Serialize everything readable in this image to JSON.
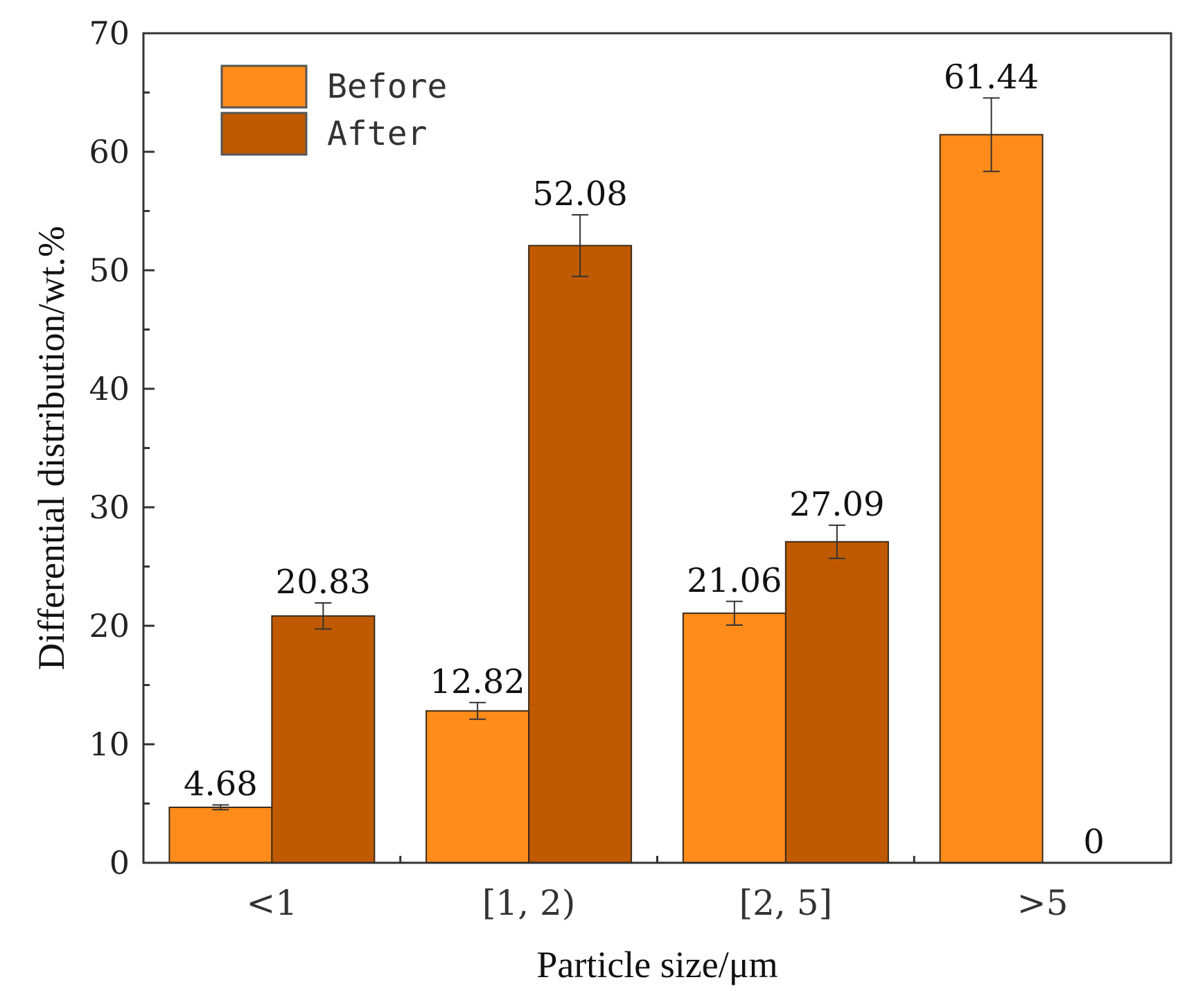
{
  "chart_data": {
    "type": "bar",
    "categories": [
      "<1",
      "[1, 2)",
      "[2, 5]",
      ">5"
    ],
    "series": [
      {
        "name": "Before",
        "color": "#ff8c1a",
        "values": [
          4.68,
          12.82,
          21.06,
          61.44
        ],
        "errors": [
          0.2,
          0.7,
          1.0,
          3.1
        ]
      },
      {
        "name": "After",
        "color": "#c05a00",
        "values": [
          20.83,
          52.08,
          27.09,
          0
        ],
        "errors": [
          1.1,
          2.6,
          1.4,
          0
        ]
      }
    ],
    "data_labels": [
      [
        "4.68",
        "12.82",
        "21.06",
        "61.44"
      ],
      [
        "20.83",
        "52.08",
        "27.09",
        "0"
      ]
    ],
    "xlabel": "Particle size/μm",
    "ylabel": "Differential distribution/wt.%",
    "ylim": [
      0,
      70
    ],
    "yticks": [
      "0",
      "10",
      "20",
      "30",
      "40",
      "50",
      "60",
      "70"
    ],
    "legend_position": "top-left",
    "grid": false
  }
}
